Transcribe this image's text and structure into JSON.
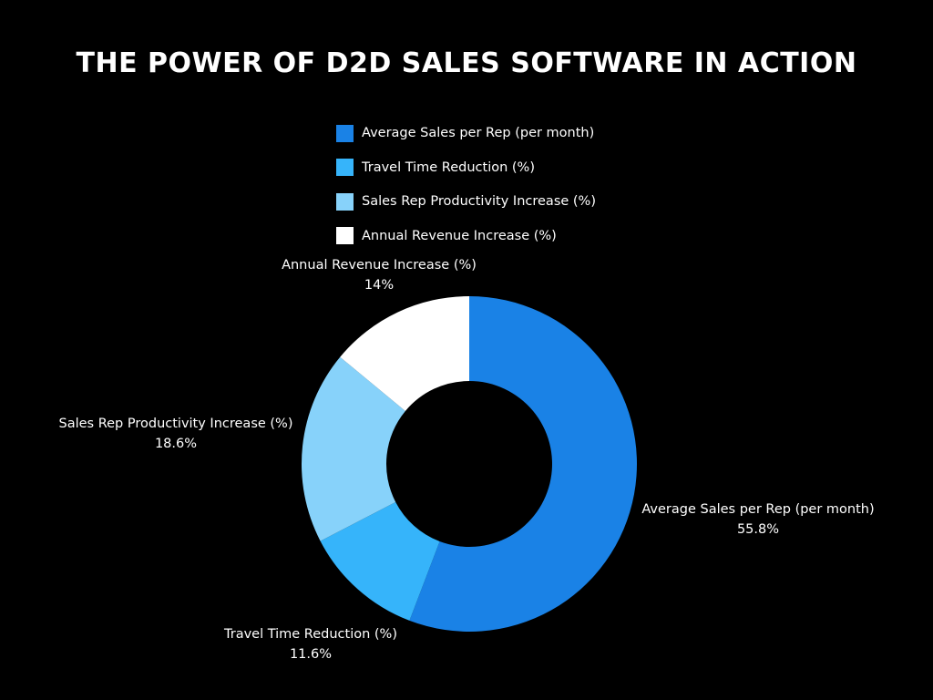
{
  "chart_data": {
    "type": "pie",
    "title": "THE POWER OF D2D SALES SOFTWARE IN ACTION",
    "categories": [
      "Average Sales per Rep (per month)",
      "Travel Time Reduction (%)",
      "Sales Rep Productivity Increase (%)",
      "Annual Revenue Increase (%)"
    ],
    "values": [
      55.8,
      11.6,
      18.6,
      14
    ],
    "value_labels": [
      "55.8%",
      "11.6%",
      "18.6%",
      "14%"
    ],
    "colors": [
      "#1a82e6",
      "#36b4fa",
      "#87d2fa",
      "#ffffff"
    ],
    "donut": true,
    "legend_position": "top"
  }
}
